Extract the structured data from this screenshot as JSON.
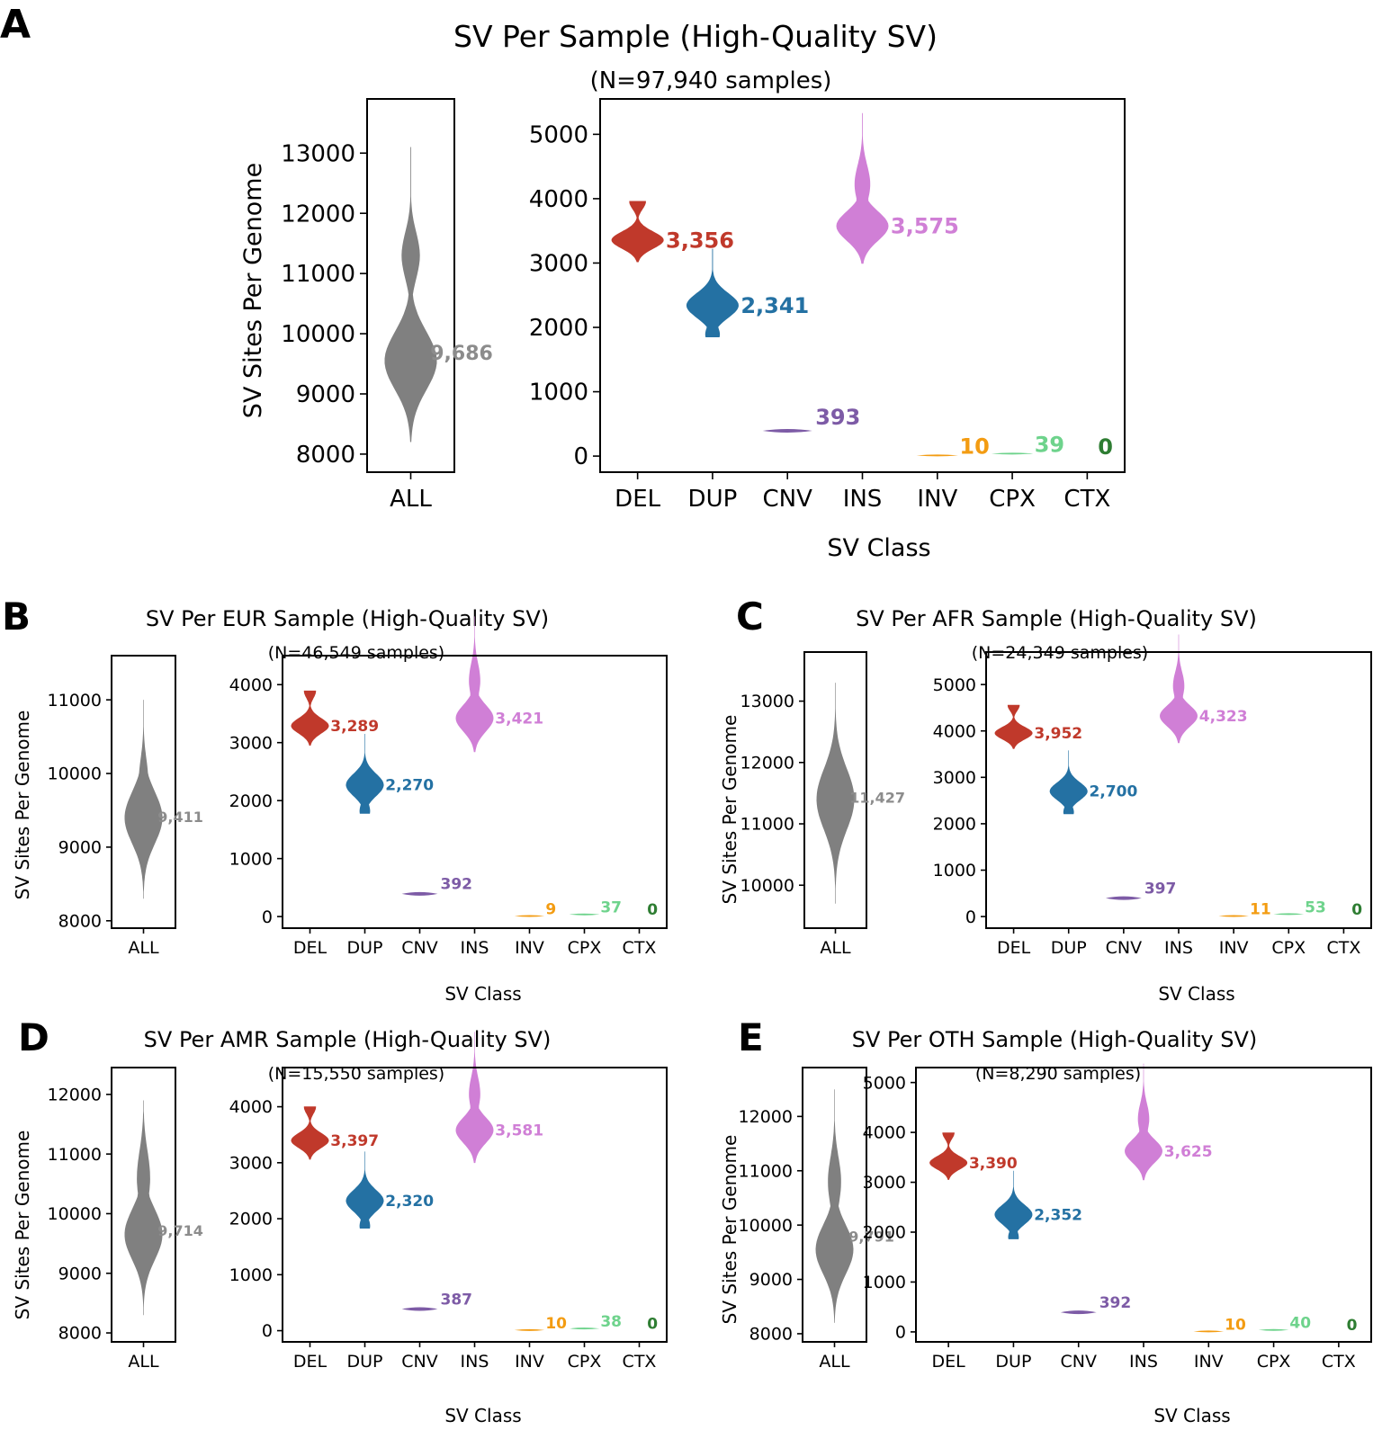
{
  "figure": {
    "categories": [
      "DEL",
      "DUP",
      "CNV",
      "INS",
      "INV",
      "CPX",
      "CTX"
    ],
    "all_label": "ALL",
    "ylabel": "SV Sites Per Genome",
    "xlabel": "SV Class",
    "colors": {
      "ALL": "#808080",
      "DEL": "#C0392B",
      "DUP": "#2471A3",
      "CNV": "#7D5BA6",
      "INS": "#D07FD6",
      "INV": "#F39C12",
      "CPX": "#6ED38C",
      "CTX": "#2E7D32"
    },
    "label_colors": {
      "ALL": "#8C8C8C",
      "DEL": "#C0392B",
      "DUP": "#2471A3",
      "CNV": "#7D5BA6",
      "INS": "#D07FD6",
      "INV": "#F39C12",
      "CPX": "#6ED38C",
      "CTX": "#2E7D32"
    }
  },
  "chart_data": [
    {
      "panel": "A",
      "type": "violin",
      "title": "SV Per Sample (High-Quality SV)",
      "subtitle": "(N=97,940 samples)",
      "all": {
        "ylim": [
          7700,
          13900
        ],
        "yticks": [
          8000,
          9000,
          10000,
          11000,
          12000,
          13000
        ],
        "value": 9686,
        "label": "9,686",
        "min": 8200,
        "max": 13100,
        "peaks": [
          [
            9550,
            1.0,
            480
          ],
          [
            11300,
            0.35,
            380
          ]
        ]
      },
      "classes": {
        "ylim": [
          -250,
          5550
        ],
        "yticks": [
          0,
          1000,
          2000,
          3000,
          4000,
          5000
        ],
        "values": [
          3356,
          2341,
          393,
          3575,
          10,
          39,
          0
        ],
        "labels": [
          "3,356",
          "2,341",
          "393",
          "3,575",
          "10",
          "39",
          "0"
        ]
      }
    },
    {
      "panel": "B",
      "type": "violin",
      "title": "SV Per EUR Sample (High-Quality SV)",
      "subtitle": "(N=46,549 samples)",
      "all": {
        "ylim": [
          7900,
          11600
        ],
        "yticks": [
          8000,
          9000,
          10000,
          11000
        ],
        "value": 9411,
        "label": "9,411",
        "min": 8300,
        "max": 11000,
        "peaks": [
          [
            9400,
            1.0,
            350
          ],
          [
            9900,
            0.25,
            300
          ]
        ]
      },
      "classes": {
        "ylim": [
          -200,
          4500
        ],
        "yticks": [
          0,
          1000,
          2000,
          3000,
          4000
        ],
        "values": [
          3289,
          2270,
          392,
          3421,
          9,
          37,
          0
        ],
        "labels": [
          "3,289",
          "2,270",
          "392",
          "3,421",
          "9",
          "37",
          "0"
        ]
      }
    },
    {
      "panel": "C",
      "type": "violin",
      "title": "SV Per AFR Sample (High-Quality SV)",
      "subtitle": "(N=24,349 samples)",
      "all": {
        "ylim": [
          9300,
          13800
        ],
        "yticks": [
          10000,
          11000,
          12000,
          13000
        ],
        "value": 11427,
        "label": "11,427",
        "min": 9700,
        "max": 13300,
        "peaks": [
          [
            11400,
            1.0,
            500
          ]
        ]
      },
      "classes": {
        "ylim": [
          -250,
          5700
        ],
        "yticks": [
          0,
          1000,
          2000,
          3000,
          4000,
          5000
        ],
        "values": [
          3952,
          2700,
          397,
          4323,
          11,
          53,
          0
        ],
        "labels": [
          "3,952",
          "2,700",
          "397",
          "4,323",
          "11",
          "53",
          "0"
        ]
      }
    },
    {
      "panel": "D",
      "type": "violin",
      "title": "SV Per AMR Sample (High-Quality SV)",
      "subtitle": "(N=15,550 samples)",
      "all": {
        "ylim": [
          7850,
          12450
        ],
        "yticks": [
          8000,
          9000,
          10000,
          11000,
          12000
        ],
        "value": 9714,
        "label": "9,714",
        "min": 8300,
        "max": 11900,
        "peaks": [
          [
            9650,
            1.0,
            420
          ],
          [
            10600,
            0.35,
            450
          ]
        ]
      },
      "classes": {
        "ylim": [
          -200,
          4700
        ],
        "yticks": [
          0,
          1000,
          2000,
          3000,
          4000
        ],
        "values": [
          3397,
          2320,
          387,
          3581,
          10,
          38,
          0
        ],
        "labels": [
          "3,397",
          "2,320",
          "387",
          "3,581",
          "10",
          "38",
          "0"
        ]
      }
    },
    {
      "panel": "E",
      "type": "violin",
      "title": "SV Per OTH Sample (High-Quality SV)",
      "subtitle": "(N=8,290 samples)",
      "all": {
        "ylim": [
          7850,
          12900
        ],
        "yticks": [
          8000,
          9000,
          10000,
          11000,
          12000
        ],
        "value": 9791,
        "label": "9,791",
        "min": 8200,
        "max": 12500,
        "peaks": [
          [
            9550,
            1.0,
            450
          ],
          [
            10800,
            0.35,
            450
          ]
        ]
      },
      "classes": {
        "ylim": [
          -200,
          5300
        ],
        "yticks": [
          0,
          1000,
          2000,
          3000,
          4000,
          5000
        ],
        "values": [
          3390,
          2352,
          392,
          3625,
          10,
          40,
          0
        ],
        "labels": [
          "3,390",
          "2,352",
          "392",
          "3,625",
          "10",
          "40",
          "0"
        ]
      }
    }
  ]
}
